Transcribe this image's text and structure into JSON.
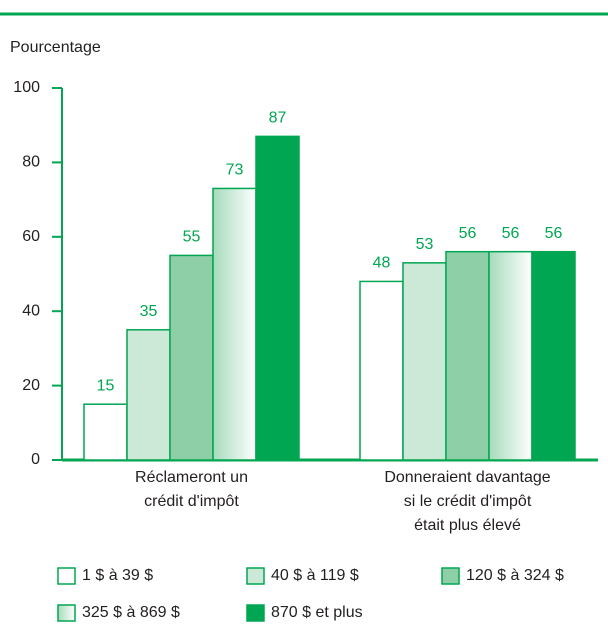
{
  "chart_data": {
    "type": "bar",
    "y_axis_label": "Pourcentage",
    "categories": [
      [
        "Réclameront un",
        "crédit d'impôt"
      ],
      [
        "Donneraient davantage",
        "si le crédit d'impôt",
        "était plus élevé"
      ]
    ],
    "series": [
      {
        "name": "1 $ à 39 $",
        "color": "#ffffff",
        "values": [
          15,
          48
        ]
      },
      {
        "name": "40 $ à 119 $",
        "color": "#cce9d7",
        "values": [
          35,
          53
        ]
      },
      {
        "name": "120 $ à 324 $",
        "color": "#8ecfa7",
        "values": [
          55,
          56
        ]
      },
      {
        "name": "325 $ à 869 $",
        "color": "#a6dbbb",
        "gradient": true,
        "values": [
          73,
          56
        ]
      },
      {
        "name": "870 $ et plus",
        "color": "#00a651",
        "values": [
          87,
          56
        ]
      }
    ],
    "ylim": [
      0,
      100
    ],
    "yticks": [
      0,
      20,
      40,
      60,
      80,
      100
    ]
  }
}
